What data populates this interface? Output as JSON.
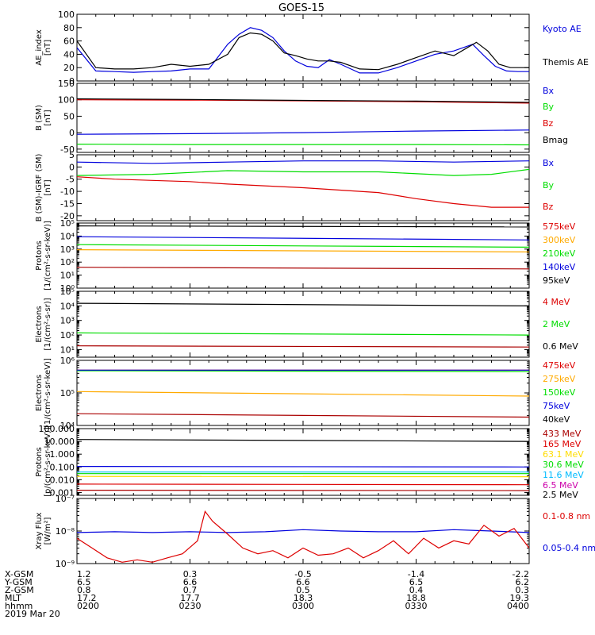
{
  "title": "GOES-15",
  "colors": {
    "black": "#000000",
    "blue": "#0000dd",
    "green": "#00dd00",
    "red": "#dd0000",
    "orange": "#ffaa00",
    "cyan": "#00bbff",
    "yellow": "#ffdd00",
    "dkred": "#aa0000",
    "magenta": "#cc00aa"
  },
  "chart_data": [
    {
      "type": "line",
      "id": "ae",
      "ylabel": [
        "AE_index",
        "[nT]"
      ],
      "yscale": "linear",
      "ylim": [
        0,
        100
      ],
      "yticks": [
        "0",
        "20",
        "40",
        "60",
        "80",
        "100"
      ],
      "yticks_v": [
        0,
        20,
        40,
        60,
        80,
        100
      ],
      "series": [
        {
          "name": "Kyoto AE",
          "color": "blue",
          "x": [
            0,
            5,
            10,
            15,
            20,
            25,
            30,
            35,
            40,
            43,
            46,
            49,
            52,
            55,
            58,
            61,
            64,
            67,
            70,
            75,
            80,
            85,
            90,
            95,
            100,
            105,
            108,
            111,
            114,
            117,
            120
          ],
          "y": [
            50,
            15,
            14,
            13,
            14,
            15,
            18,
            18,
            55,
            70,
            80,
            76,
            65,
            45,
            30,
            22,
            20,
            32,
            25,
            12,
            12,
            20,
            30,
            40,
            45,
            55,
            38,
            22,
            15,
            14,
            14
          ]
        },
        {
          "name": "Themis AE",
          "color": "black",
          "x": [
            0,
            5,
            10,
            15,
            20,
            25,
            30,
            35,
            40,
            43,
            46,
            49,
            52,
            55,
            58,
            61,
            64,
            67,
            70,
            75,
            80,
            85,
            90,
            95,
            100,
            103,
            106,
            109,
            112,
            115,
            120
          ],
          "y": [
            60,
            20,
            18,
            18,
            20,
            25,
            22,
            25,
            40,
            65,
            72,
            70,
            60,
            42,
            38,
            33,
            30,
            30,
            28,
            18,
            17,
            25,
            35,
            45,
            38,
            48,
            58,
            45,
            25,
            20,
            20
          ]
        }
      ],
      "labels": [
        {
          "text": "Kyoto AE",
          "color": "blue"
        },
        {
          "text": "Themis AE",
          "color": "black"
        }
      ]
    },
    {
      "type": "line",
      "id": "bsm",
      "ylabel": [
        "B (SM)",
        "[nT]"
      ],
      "yscale": "linear",
      "ylim": [
        -60,
        150
      ],
      "yticks": [
        "-50",
        "0",
        "50",
        "100",
        "150"
      ],
      "yticks_v": [
        -50,
        0,
        50,
        100,
        150
      ],
      "series": [
        {
          "name": "Bx",
          "color": "blue",
          "x": [
            0,
            30,
            60,
            90,
            120
          ],
          "y": [
            -5,
            -3,
            0,
            5,
            8
          ]
        },
        {
          "name": "By",
          "color": "green",
          "x": [
            0,
            30,
            60,
            90,
            120
          ],
          "y": [
            -35,
            -36,
            -36,
            -36,
            -37
          ]
        },
        {
          "name": "Bz",
          "color": "red",
          "x": [
            0,
            30,
            60,
            90,
            120
          ],
          "y": [
            100,
            99,
            97,
            94,
            90
          ]
        },
        {
          "name": "Bmag",
          "color": "black",
          "x": [
            0,
            30,
            60,
            90,
            120
          ],
          "y": [
            103,
            101,
            98,
            96,
            92
          ]
        }
      ],
      "labels": [
        {
          "text": "Bx",
          "color": "blue"
        },
        {
          "text": "By",
          "color": "green"
        },
        {
          "text": "Bz",
          "color": "red"
        },
        {
          "text": "Bmag",
          "color": "black"
        }
      ]
    },
    {
      "type": "line",
      "id": "bigrf",
      "ylabel": [
        "B (SM)-IGRF (SM)",
        "[nT]"
      ],
      "yscale": "linear",
      "ylim": [
        -22,
        5
      ],
      "yticks": [
        "-20",
        "-15",
        "-10",
        "-5",
        "0",
        "5"
      ],
      "yticks_v": [
        -20,
        -15,
        -10,
        -5,
        0,
        5
      ],
      "series": [
        {
          "name": "Bx",
          "color": "blue",
          "x": [
            0,
            20,
            40,
            60,
            80,
            100,
            120
          ],
          "y": [
            2,
            1.5,
            2,
            2.5,
            2.5,
            2,
            2.5
          ]
        },
        {
          "name": "By",
          "color": "green",
          "x": [
            0,
            20,
            40,
            60,
            80,
            100,
            110,
            120
          ],
          "y": [
            -3.5,
            -3,
            -1.5,
            -2,
            -2,
            -3.5,
            -3,
            -1
          ]
        },
        {
          "name": "Bz",
          "color": "red",
          "x": [
            0,
            10,
            20,
            30,
            40,
            60,
            80,
            90,
            100,
            110,
            120
          ],
          "y": [
            -4,
            -5,
            -5.5,
            -6,
            -7,
            -8.5,
            -10.5,
            -13,
            -15,
            -16.5,
            -16.5
          ]
        }
      ],
      "labels": [
        {
          "text": "Bx",
          "color": "blue"
        },
        {
          "text": "By",
          "color": "green"
        },
        {
          "text": "Bz",
          "color": "red"
        }
      ]
    },
    {
      "type": "line",
      "id": "protons1",
      "ylabel": [
        "Protons",
        "[1/(cm²-s-sr-keV)]"
      ],
      "yscale": "log",
      "ylim": [
        1,
        100000
      ],
      "yticks": [
        "10⁰",
        "10¹",
        "10²",
        "10³",
        "10⁴",
        "10⁵"
      ],
      "yticks_v": [
        1,
        10,
        100,
        1000,
        10000,
        100000
      ],
      "series": [
        {
          "name": "575keV",
          "color": "black",
          "x": [
            0,
            120
          ],
          "y": [
            60000,
            50000
          ]
        },
        {
          "name": "300keV",
          "color": "orange",
          "x": [
            0,
            120
          ],
          "y": [
            900,
            600
          ]
        },
        {
          "name": "210keV",
          "color": "green",
          "x": [
            0,
            120
          ],
          "y": [
            2200,
            1400
          ]
        },
        {
          "name": "140keV",
          "color": "blue",
          "x": [
            0,
            120
          ],
          "y": [
            9000,
            5000
          ]
        },
        {
          "name": "95keV",
          "color": "dkred",
          "x": [
            0,
            120
          ],
          "y": [
            40,
            30
          ]
        }
      ],
      "labels": [
        {
          "text": "575keV",
          "color": "red"
        },
        {
          "text": "300keV",
          "color": "orange"
        },
        {
          "text": "210keV",
          "color": "green"
        },
        {
          "text": "140keV",
          "color": "blue"
        },
        {
          "text": "95keV",
          "color": "black"
        }
      ]
    },
    {
      "type": "line",
      "id": "electrons1",
      "ylabel": [
        "Electrons",
        "[1/(cm²-s-sr)]"
      ],
      "yscale": "log",
      "ylim": [
        3,
        100000
      ],
      "yticks": [
        "10¹",
        "10²",
        "10³",
        "10⁴",
        "10⁵"
      ],
      "yticks_v": [
        10,
        100,
        1000,
        10000,
        100000
      ],
      "series": [
        {
          "name": "0.6 MeV",
          "color": "black",
          "x": [
            0,
            120
          ],
          "y": [
            15000,
            10000
          ]
        },
        {
          "name": "2 MeV",
          "color": "green",
          "x": [
            0,
            120
          ],
          "y": [
            140,
            100
          ]
        },
        {
          "name": "4 MeV",
          "color": "dkred",
          "x": [
            0,
            120
          ],
          "y": [
            18,
            15
          ]
        }
      ],
      "labels": [
        {
          "text": "4 MeV",
          "color": "red"
        },
        {
          "text": "2 MeV",
          "color": "green"
        },
        {
          "text": "0.6 MeV",
          "color": "black"
        }
      ]
    },
    {
      "type": "line",
      "id": "electrons2",
      "ylabel": [
        "Electrons",
        "[1/(cm²-s-sr-keV)]"
      ],
      "yscale": "log",
      "ylim": [
        10000,
        1000000
      ],
      "yticks": [
        "10⁴",
        "10⁵",
        "10⁶"
      ],
      "yticks_v": [
        10000,
        100000,
        1000000
      ],
      "series": [
        {
          "name": "475keV",
          "color": "red",
          "x": [
            0,
            120
          ],
          "y": [
            500000,
            500000
          ]
        },
        {
          "name": "275keV",
          "color": "orange",
          "x": [
            0,
            120
          ],
          "y": [
            110000,
            80000
          ]
        },
        {
          "name": "150keV",
          "color": "green",
          "x": [
            0,
            120
          ],
          "y": [
            480000,
            450000
          ]
        },
        {
          "name": "75keV",
          "color": "blue",
          "x": [
            0,
            120
          ],
          "y": [
            500000,
            500000
          ]
        },
        {
          "name": "40keV",
          "color": "dkred",
          "x": [
            0,
            120
          ],
          "y": [
            23000,
            18000
          ]
        }
      ],
      "labels": [
        {
          "text": "475keV",
          "color": "red"
        },
        {
          "text": "275keV",
          "color": "orange"
        },
        {
          "text": "150keV",
          "color": "green"
        },
        {
          "text": "75keV",
          "color": "blue"
        },
        {
          "text": "40keV",
          "color": "black"
        }
      ]
    },
    {
      "type": "line",
      "id": "protons2",
      "ylabel": [
        "Protons",
        "[p/(cm²-s-sr-keV)]"
      ],
      "yscale": "log",
      "ylim": [
        0.0006,
        100
      ],
      "yticks": [
        "0.001",
        "0.010",
        "0.100",
        "1.000",
        "10.000",
        "100.000"
      ],
      "yticks_v": [
        0.001,
        0.01,
        0.1,
        1,
        10,
        100
      ],
      "series": [
        {
          "name": "433 MeV",
          "color": "black",
          "x": [
            0,
            120
          ],
          "y": [
            14,
            10
          ]
        },
        {
          "name": "165 MeV",
          "color": "red",
          "x": [
            0,
            120
          ],
          "y": [
            0.0045,
            0.004
          ]
        },
        {
          "name": "63.1 MeV",
          "color": "yellow",
          "x": [
            0,
            120
          ],
          "y": [
            0.018,
            0.017
          ]
        },
        {
          "name": "30.6 MeV",
          "color": "green",
          "x": [
            0,
            120
          ],
          "y": [
            0.03,
            0.03
          ]
        },
        {
          "name": "11.6 MeV",
          "color": "cyan",
          "x": [
            0,
            120
          ],
          "y": [
            0.04,
            0.04
          ]
        },
        {
          "name": "6.5 MeV",
          "color": "blue",
          "x": [
            0,
            120
          ],
          "y": [
            0.11,
            0.1
          ]
        },
        {
          "name": "2.5 MeV",
          "color": "dkred",
          "x": [
            0,
            120
          ],
          "y": [
            0.0015,
            0.0014
          ]
        }
      ],
      "labels": [
        {
          "text": "433 MeV",
          "color": "dkred"
        },
        {
          "text": "165 MeV",
          "color": "red"
        },
        {
          "text": "63.1 MeV",
          "color": "yellow"
        },
        {
          "text": "30.6 MeV",
          "color": "green"
        },
        {
          "text": "11.6 MeV",
          "color": "cyan"
        },
        {
          "text": "6.5 MeV",
          "color": "magenta"
        },
        {
          "text": "2.5 MeV",
          "color": "black"
        }
      ]
    },
    {
      "type": "line",
      "id": "xray",
      "ylabel": [
        "Xray Flux",
        "[W/m²]"
      ],
      "yscale": "log",
      "ylim": [
        1e-09,
        1e-07
      ],
      "yticks": [
        "10⁻⁹",
        "10⁻⁸",
        "10⁻⁷"
      ],
      "yticks_v": [
        1e-09,
        1e-08,
        1e-07
      ],
      "series": [
        {
          "name": "0.05-0.4 nm",
          "color": "blue",
          "x": [
            0,
            10,
            20,
            30,
            40,
            50,
            60,
            70,
            80,
            90,
            100,
            110,
            120
          ],
          "y": [
            9e-09,
            9.5e-09,
            9e-09,
            9.5e-09,
            9e-09,
            9.5e-09,
            1.1e-08,
            1e-08,
            9.5e-09,
            9.5e-09,
            1.1e-08,
            1e-08,
            9e-09
          ]
        },
        {
          "name": "0.1-0.8 nm",
          "color": "red",
          "x": [
            0,
            4,
            8,
            12,
            16,
            20,
            24,
            28,
            32,
            34,
            36,
            40,
            44,
            48,
            52,
            56,
            60,
            64,
            68,
            72,
            76,
            80,
            84,
            88,
            92,
            96,
            100,
            104,
            108,
            112,
            116,
            120
          ],
          "y": [
            6e-09,
            3e-09,
            1.5e-09,
            1.1e-09,
            1.3e-09,
            1.1e-09,
            1.5e-09,
            2e-09,
            5e-09,
            4e-08,
            2e-08,
            8e-09,
            3e-09,
            2e-09,
            2.5e-09,
            1.5e-09,
            3e-09,
            1.8e-09,
            2e-09,
            3e-09,
            1.5e-09,
            2.5e-09,
            5e-09,
            2e-09,
            6e-09,
            3e-09,
            5e-09,
            4e-09,
            1.5e-08,
            7e-09,
            1.2e-08,
            3e-09
          ]
        }
      ],
      "labels": [
        {
          "text": "0.1-0.8 nm",
          "color": "red"
        },
        {
          "text": "0.05-0.4 nm",
          "color": "blue"
        }
      ]
    }
  ],
  "xaxis": {
    "rows": [
      {
        "label": "X-GSM",
        "values": [
          "1.2",
          "0.3",
          "-0.5",
          "-1.4",
          "-2.2"
        ]
      },
      {
        "label": "Y-GSM",
        "values": [
          "6.5",
          "6.6",
          "6.6",
          "6.5",
          "6.2"
        ]
      },
      {
        "label": "Z-GSM",
        "values": [
          "0.8",
          "0.7",
          "0.5",
          "0.4",
          "0.3"
        ]
      },
      {
        "label": "MLT",
        "values": [
          "17.2",
          "17.7",
          "18.3",
          "18.8",
          "19.3"
        ]
      },
      {
        "label": "hhmm",
        "values": [
          "0200",
          "0230",
          "0300",
          "0330",
          "0400"
        ]
      }
    ],
    "date": "2019 Mar 20"
  }
}
